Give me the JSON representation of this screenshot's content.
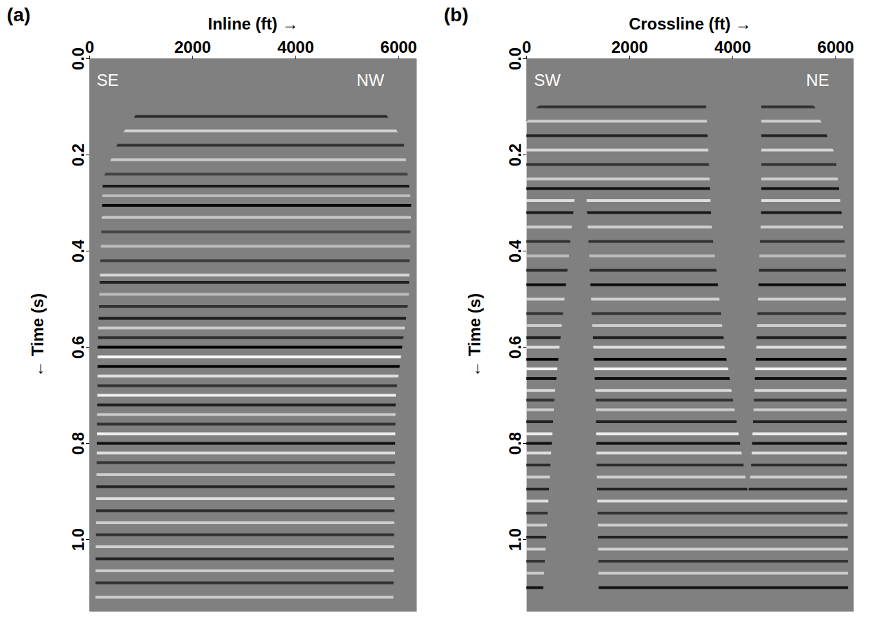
{
  "chart_data": [
    {
      "type": "seismic",
      "title": "(a)",
      "x_label": "Inline (ft)",
      "y_label": "Time (s)",
      "xlim": [
        0,
        6350
      ],
      "xticks": [
        0,
        2000,
        4000,
        6000
      ],
      "ylim": [
        0,
        1.15
      ],
      "yticks": [
        {
          "value": 0,
          "label": "0.0"
        },
        0.2,
        0.4,
        0.6,
        0.8,
        {
          "value": 1,
          "label": "1.0"
        }
      ],
      "color": "#808080",
      "annotations": [
        {
          "text": "SE",
          "x": 350,
          "t": 0.045
        },
        {
          "text": "NW",
          "x": 5450,
          "t": 0.045
        }
      ],
      "reflectors": {
        "t": [
          0.12,
          0.15,
          0.18,
          0.21,
          0.24,
          0.265,
          0.285,
          0.305,
          0.33,
          0.36,
          0.39,
          0.42,
          0.45,
          0.465,
          0.49,
          0.515,
          0.54,
          0.56,
          0.58,
          0.6,
          0.62,
          0.64,
          0.66,
          0.68,
          0.7,
          0.72,
          0.74,
          0.76,
          0.78,
          0.8,
          0.82,
          0.84,
          0.865,
          0.89,
          0.915,
          0.94,
          0.965,
          0.99,
          1.015,
          1.04,
          1.065,
          1.09,
          1.12
        ],
        "colors": [
          "#2a2a2a",
          "#d0d0d0",
          "#333333",
          "#cccccc",
          "#444444",
          "#1a1a1a",
          "#bbbbbb",
          "#0a0a0a",
          "#c8c8c8",
          "#444444",
          "#bbbbbb",
          "#3a3a3a",
          "#d5d5d5",
          "#222222",
          "#bbbbbb",
          "#333333",
          "#1a1a1a",
          "#cccccc",
          "#2a2a2a",
          "#000000",
          "#f5f5f5",
          "#000000",
          "#dddddd",
          "#333333",
          "#eeeeee",
          "#222222",
          "#cccccc",
          "#333333",
          "#f0f0f0",
          "#111111",
          "#dddddd",
          "#333333",
          "#cccccc",
          "#222222",
          "#dddddd",
          "#2a2a2a",
          "#cccccc",
          "#333333",
          "#d0d0d0",
          "#222222",
          "#cccccc",
          "#333333",
          "#cccccc"
        ]
      },
      "dead_zones": [
        {
          "x": [
            0,
            6350,
            6350,
            6100,
            5600,
            4800,
            3800,
            2600,
            1800,
            1000,
            600,
            250,
            0
          ],
          "t": [
            0,
            0,
            0.2,
            0.17,
            0.09,
            0.05,
            0,
            0,
            0.04,
            0.1,
            0.16,
            0.25,
            0.3
          ]
        },
        {
          "x": [
            0,
            250,
            150,
            100,
            0
          ],
          "t": [
            0.3,
            0.25,
            0.6,
            1.15,
            1.15
          ]
        },
        {
          "x": [
            6350,
            6100,
            6250,
            6200,
            5950,
            5900,
            6350
          ],
          "t": [
            0.2,
            0.17,
            0.3,
            0.5,
            0.7,
            1.15,
            1.15
          ]
        }
      ]
    },
    {
      "type": "seismic",
      "title": "(b)",
      "x_label": "Crossline (ft)",
      "y_label": "Time (s)",
      "xlim": [
        0,
        6350
      ],
      "xticks": [
        0,
        2000,
        4000,
        6000
      ],
      "ylim": [
        0,
        1.15
      ],
      "yticks": [
        {
          "value": 0,
          "label": "0.0"
        },
        0.2,
        0.4,
        0.6,
        0.8,
        {
          "value": 1,
          "label": "1.0"
        }
      ],
      "color": "#808080",
      "annotations": [
        {
          "text": "SW",
          "x": 400,
          "t": 0.045
        },
        {
          "text": "NE",
          "x": 5650,
          "t": 0.045
        }
      ],
      "reflectors": {
        "t": [
          0.1,
          0.13,
          0.16,
          0.19,
          0.22,
          0.25,
          0.27,
          0.295,
          0.32,
          0.35,
          0.38,
          0.41,
          0.44,
          0.47,
          0.5,
          0.53,
          0.555,
          0.58,
          0.6,
          0.625,
          0.645,
          0.665,
          0.69,
          0.71,
          0.73,
          0.755,
          0.78,
          0.8,
          0.82,
          0.845,
          0.87,
          0.895,
          0.92,
          0.945,
          0.97,
          0.995,
          1.02,
          1.045,
          1.07,
          1.1
        ],
        "colors": [
          "#333333",
          "#cccccc",
          "#222222",
          "#d5d5d5",
          "#333333",
          "#cccccc",
          "#111111",
          "#dddddd",
          "#1a1a1a",
          "#cccccc",
          "#333333",
          "#bbbbbb",
          "#2a2a2a",
          "#0f0f0f",
          "#d0d0d0",
          "#333333",
          "#cccccc",
          "#1a1a1a",
          "#dddddd",
          "#000000",
          "#f5f5f5",
          "#111111",
          "#dddddd",
          "#333333",
          "#cccccc",
          "#222222",
          "#eeeeee",
          "#111111",
          "#dddddd",
          "#2a2a2a",
          "#cccccc",
          "#222222",
          "#dddddd",
          "#333333",
          "#cccccc",
          "#222222",
          "#d0d0d0",
          "#333333",
          "#cccccc",
          "#111111"
        ]
      },
      "dead_zones": [
        {
          "x": [
            0,
            6350,
            6350,
            6000,
            5600,
            5000,
            4550,
            4550,
            1000,
            600,
            200,
            0
          ],
          "t": [
            0,
            0,
            0.3,
            0.2,
            0.1,
            0.05,
            0.05,
            0,
            0,
            0.07,
            0.1,
            0.13
          ]
        },
        {
          "x": [
            950,
            1150,
            1330,
            1400,
            300,
            550
          ],
          "t": [
            0.28,
            0.28,
            0.7,
            1.15,
            1.15,
            0.7
          ]
        },
        {
          "x": [
            3450,
            4550,
            4550,
            4450,
            4350,
            4300,
            4150,
            3850,
            3600
          ],
          "t": [
            0,
            0,
            0.3,
            0.6,
            0.85,
            0.9,
            0.8,
            0.6,
            0.35
          ]
        },
        {
          "x": [
            6350,
            6000,
            6200,
            6250,
            6350
          ],
          "t": [
            0.3,
            0.2,
            0.4,
            1.15,
            1.15
          ]
        }
      ]
    }
  ]
}
